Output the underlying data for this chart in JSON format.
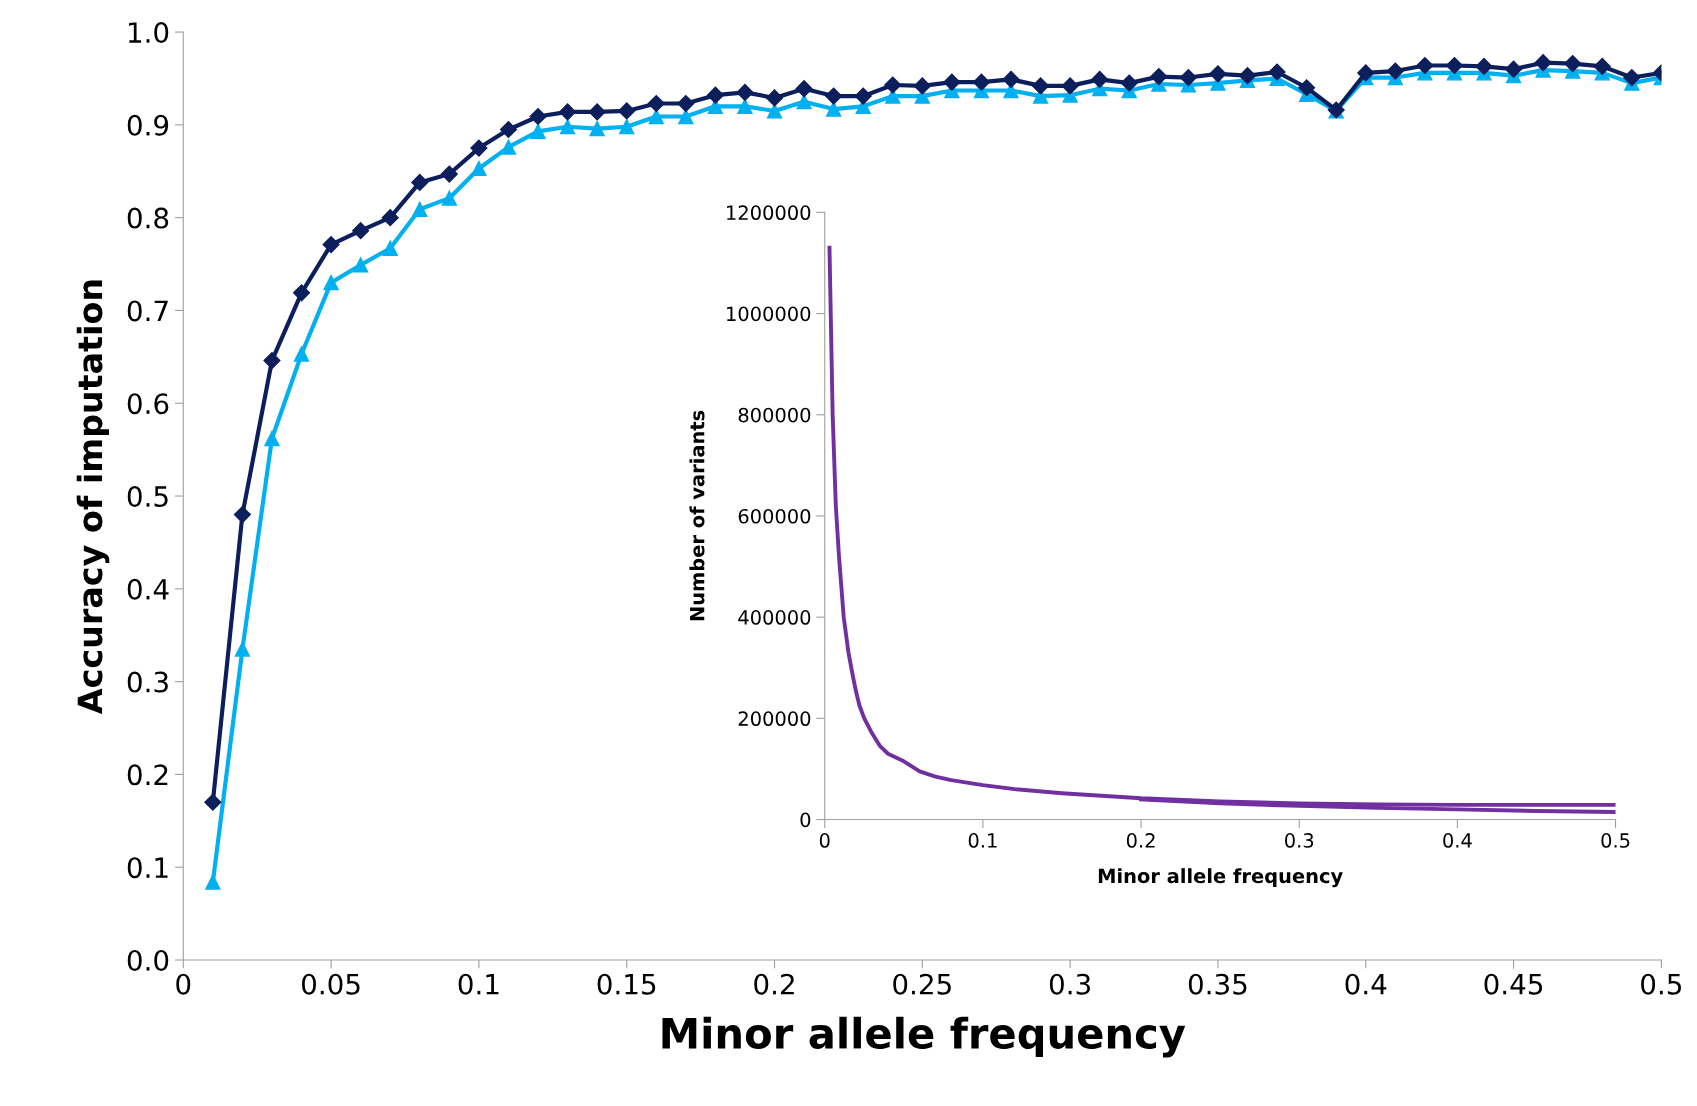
{
  "chart_data": [
    {
      "type": "line",
      "xlabel": "Minor allele frequency",
      "ylabel": "Accuracy of imputation",
      "legend": false,
      "grid": false,
      "x": [
        0.01,
        0.02,
        0.03,
        0.04,
        0.05,
        0.06,
        0.07,
        0.08,
        0.09,
        0.1,
        0.11,
        0.12,
        0.13,
        0.14,
        0.15,
        0.16,
        0.17,
        0.18,
        0.19,
        0.2,
        0.21,
        0.22,
        0.23,
        0.24,
        0.25,
        0.26,
        0.27,
        0.28,
        0.29,
        0.3,
        0.31,
        0.32,
        0.33,
        0.34,
        0.35,
        0.36,
        0.37,
        0.38,
        0.39,
        0.4,
        0.41,
        0.42,
        0.43,
        0.44,
        0.45,
        0.46,
        0.47,
        0.48,
        0.49,
        0.5
      ],
      "series": [
        {
          "color": "#00b0f0",
          "marker": "triangle",
          "values": [
            0.084,
            0.335,
            0.562,
            0.653,
            0.73,
            0.749,
            0.767,
            0.809,
            0.821,
            0.853,
            0.876,
            0.893,
            0.898,
            0.896,
            0.898,
            0.909,
            0.909,
            0.92,
            0.92,
            0.915,
            0.925,
            0.917,
            0.92,
            0.931,
            0.931,
            0.937,
            0.937,
            0.937,
            0.931,
            0.932,
            0.939,
            0.937,
            0.944,
            0.943,
            0.945,
            0.948,
            0.95,
            0.933,
            0.915,
            0.951,
            0.951,
            0.956,
            0.956,
            0.956,
            0.953,
            0.959,
            0.958,
            0.956,
            0.945,
            0.951
          ]
        },
        {
          "color": "#0c1f5c",
          "marker": "diamond",
          "values": [
            0.17,
            0.48,
            0.646,
            0.719,
            0.771,
            0.786,
            0.8,
            0.838,
            0.847,
            0.875,
            0.895,
            0.909,
            0.914,
            0.914,
            0.915,
            0.923,
            0.923,
            0.932,
            0.935,
            0.929,
            0.939,
            0.931,
            0.931,
            0.943,
            0.942,
            0.946,
            0.946,
            0.949,
            0.942,
            0.942,
            0.949,
            0.945,
            0.952,
            0.951,
            0.955,
            0.953,
            0.957,
            0.94,
            0.916,
            0.956,
            0.958,
            0.964,
            0.964,
            0.963,
            0.96,
            0.967,
            0.966,
            0.963,
            0.951,
            0.956
          ]
        }
      ],
      "xlim": [
        0,
        0.5
      ],
      "xticks": [
        0,
        0.05,
        0.1,
        0.15,
        0.2,
        0.25,
        0.3,
        0.35,
        0.4,
        0.45,
        0.5
      ],
      "ylim": [
        0,
        1
      ],
      "yticks": [
        {
          "value": 0,
          "label": "0.0"
        },
        {
          "value": 0.1,
          "label": "0.1"
        },
        {
          "value": 0.2,
          "label": "0.2"
        },
        {
          "value": 0.3,
          "label": "0.3"
        },
        {
          "value": 0.4,
          "label": "0.4"
        },
        {
          "value": 0.5,
          "label": "0.5"
        },
        {
          "value": 0.6,
          "label": "0.6"
        },
        {
          "value": 0.7,
          "label": "0.7"
        },
        {
          "value": 0.8,
          "label": "0.8"
        },
        {
          "value": 0.9,
          "label": "0.9"
        },
        {
          "value": 1,
          "label": "1.0"
        }
      ]
    },
    {
      "type": "line",
      "xlabel": "Minor allele frequency",
      "ylabel": "Number of variants",
      "legend": false,
      "grid": false,
      "series": [
        {
          "color": "#7030a0",
          "x": [
            0.003,
            0.005,
            0.007,
            0.009,
            0.012,
            0.015,
            0.018,
            0.02,
            0.022,
            0.025,
            0.03,
            0.035,
            0.04,
            0.05,
            0.06,
            0.07,
            0.08,
            0.1,
            0.12,
            0.15,
            0.2,
            0.25,
            0.3,
            0.35,
            0.4,
            0.5
          ],
          "values": [
            1130000,
            800000,
            620000,
            520000,
            400000,
            330000,
            280000,
            250000,
            225000,
            200000,
            170000,
            145000,
            130000,
            115000,
            95000,
            85000,
            78000,
            68000,
            60000,
            52000,
            42000,
            36000,
            32000,
            30000,
            29000,
            29000
          ]
        },
        {
          "color": "#7030a0",
          "x": [
            0.2,
            0.25,
            0.3,
            0.35,
            0.4,
            0.45,
            0.5
          ],
          "values": [
            40000,
            32000,
            27000,
            23000,
            20000,
            17000,
            15000
          ]
        }
      ],
      "xlim": [
        0,
        0.5
      ],
      "xticks": [
        0,
        0.1,
        0.2,
        0.3,
        0.4,
        0.5
      ],
      "ylim": [
        0,
        1200000
      ],
      "yticks": [
        0,
        200000,
        400000,
        600000,
        800000,
        1000000,
        1200000
      ]
    }
  ]
}
